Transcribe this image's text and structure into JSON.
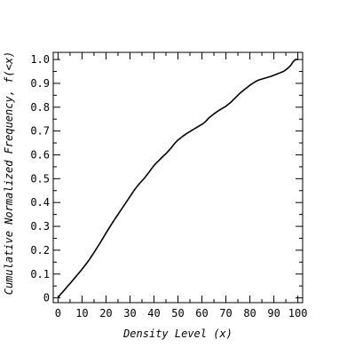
{
  "chart_data": {
    "type": "line",
    "title": "",
    "xlabel": "Density Level (x)",
    "ylabel": "Cumulative Normalized Frequency, f(<x)",
    "xlim": [
      -2,
      102
    ],
    "ylim": [
      -0.02,
      1.03
    ],
    "xticks": [
      0,
      10,
      20,
      30,
      40,
      50,
      60,
      70,
      80,
      90,
      100
    ],
    "yticks": [
      0,
      0.1,
      0.2,
      0.3,
      0.4,
      0.5,
      0.6,
      0.7,
      0.8,
      0.9,
      1.0
    ],
    "xtick_labels": [
      "0",
      "10",
      "20",
      "30",
      "40",
      "50",
      "60",
      "70",
      "80",
      "90",
      "100"
    ],
    "ytick_labels": [
      "0",
      "0.1",
      "0.2",
      "0.3",
      "0.4",
      "0.5",
      "0.6",
      "0.7",
      "0.8",
      "0.9",
      "1.0"
    ],
    "grid": false,
    "line_color": "#000000",
    "series": [
      {
        "x": [
          0,
          1,
          2,
          3,
          4,
          5,
          6,
          7,
          8,
          9,
          10,
          11,
          12,
          13,
          14,
          15,
          16,
          17,
          18,
          19,
          20,
          21,
          22,
          23,
          24,
          25,
          26,
          27,
          28,
          29,
          30,
          31,
          32,
          33,
          34,
          35,
          36,
          37,
          38,
          39,
          40,
          41,
          42,
          43,
          44,
          45,
          46,
          47,
          48,
          49,
          50,
          51,
          52,
          53,
          54,
          55,
          56,
          57,
          58,
          59,
          60,
          61,
          62,
          63,
          64,
          65,
          66,
          67,
          68,
          69,
          70,
          71,
          72,
          73,
          74,
          75,
          76,
          77,
          78,
          79,
          80,
          81,
          82,
          83,
          84,
          85,
          86,
          87,
          88,
          89,
          90,
          91,
          92,
          93,
          94,
          95,
          96,
          97,
          98,
          99,
          100
        ],
        "values": [
          0.0,
          0.015,
          0.025,
          0.037,
          0.049,
          0.06,
          0.072,
          0.084,
          0.096,
          0.108,
          0.12,
          0.133,
          0.146,
          0.16,
          0.175,
          0.19,
          0.206,
          0.222,
          0.238,
          0.255,
          0.272,
          0.288,
          0.304,
          0.32,
          0.335,
          0.35,
          0.365,
          0.38,
          0.395,
          0.41,
          0.425,
          0.44,
          0.455,
          0.468,
          0.48,
          0.491,
          0.502,
          0.515,
          0.528,
          0.542,
          0.555,
          0.566,
          0.576,
          0.586,
          0.596,
          0.605,
          0.616,
          0.627,
          0.64,
          0.652,
          0.662,
          0.67,
          0.678,
          0.685,
          0.692,
          0.698,
          0.704,
          0.71,
          0.716,
          0.722,
          0.728,
          0.735,
          0.745,
          0.756,
          0.764,
          0.772,
          0.779,
          0.786,
          0.792,
          0.798,
          0.804,
          0.812,
          0.82,
          0.83,
          0.84,
          0.85,
          0.86,
          0.868,
          0.876,
          0.884,
          0.892,
          0.899,
          0.905,
          0.911,
          0.915,
          0.918,
          0.921,
          0.924,
          0.927,
          0.93,
          0.934,
          0.938,
          0.942,
          0.946,
          0.95,
          0.957,
          0.965,
          0.975,
          0.99,
          1.0,
          1.0
        ]
      }
    ]
  }
}
